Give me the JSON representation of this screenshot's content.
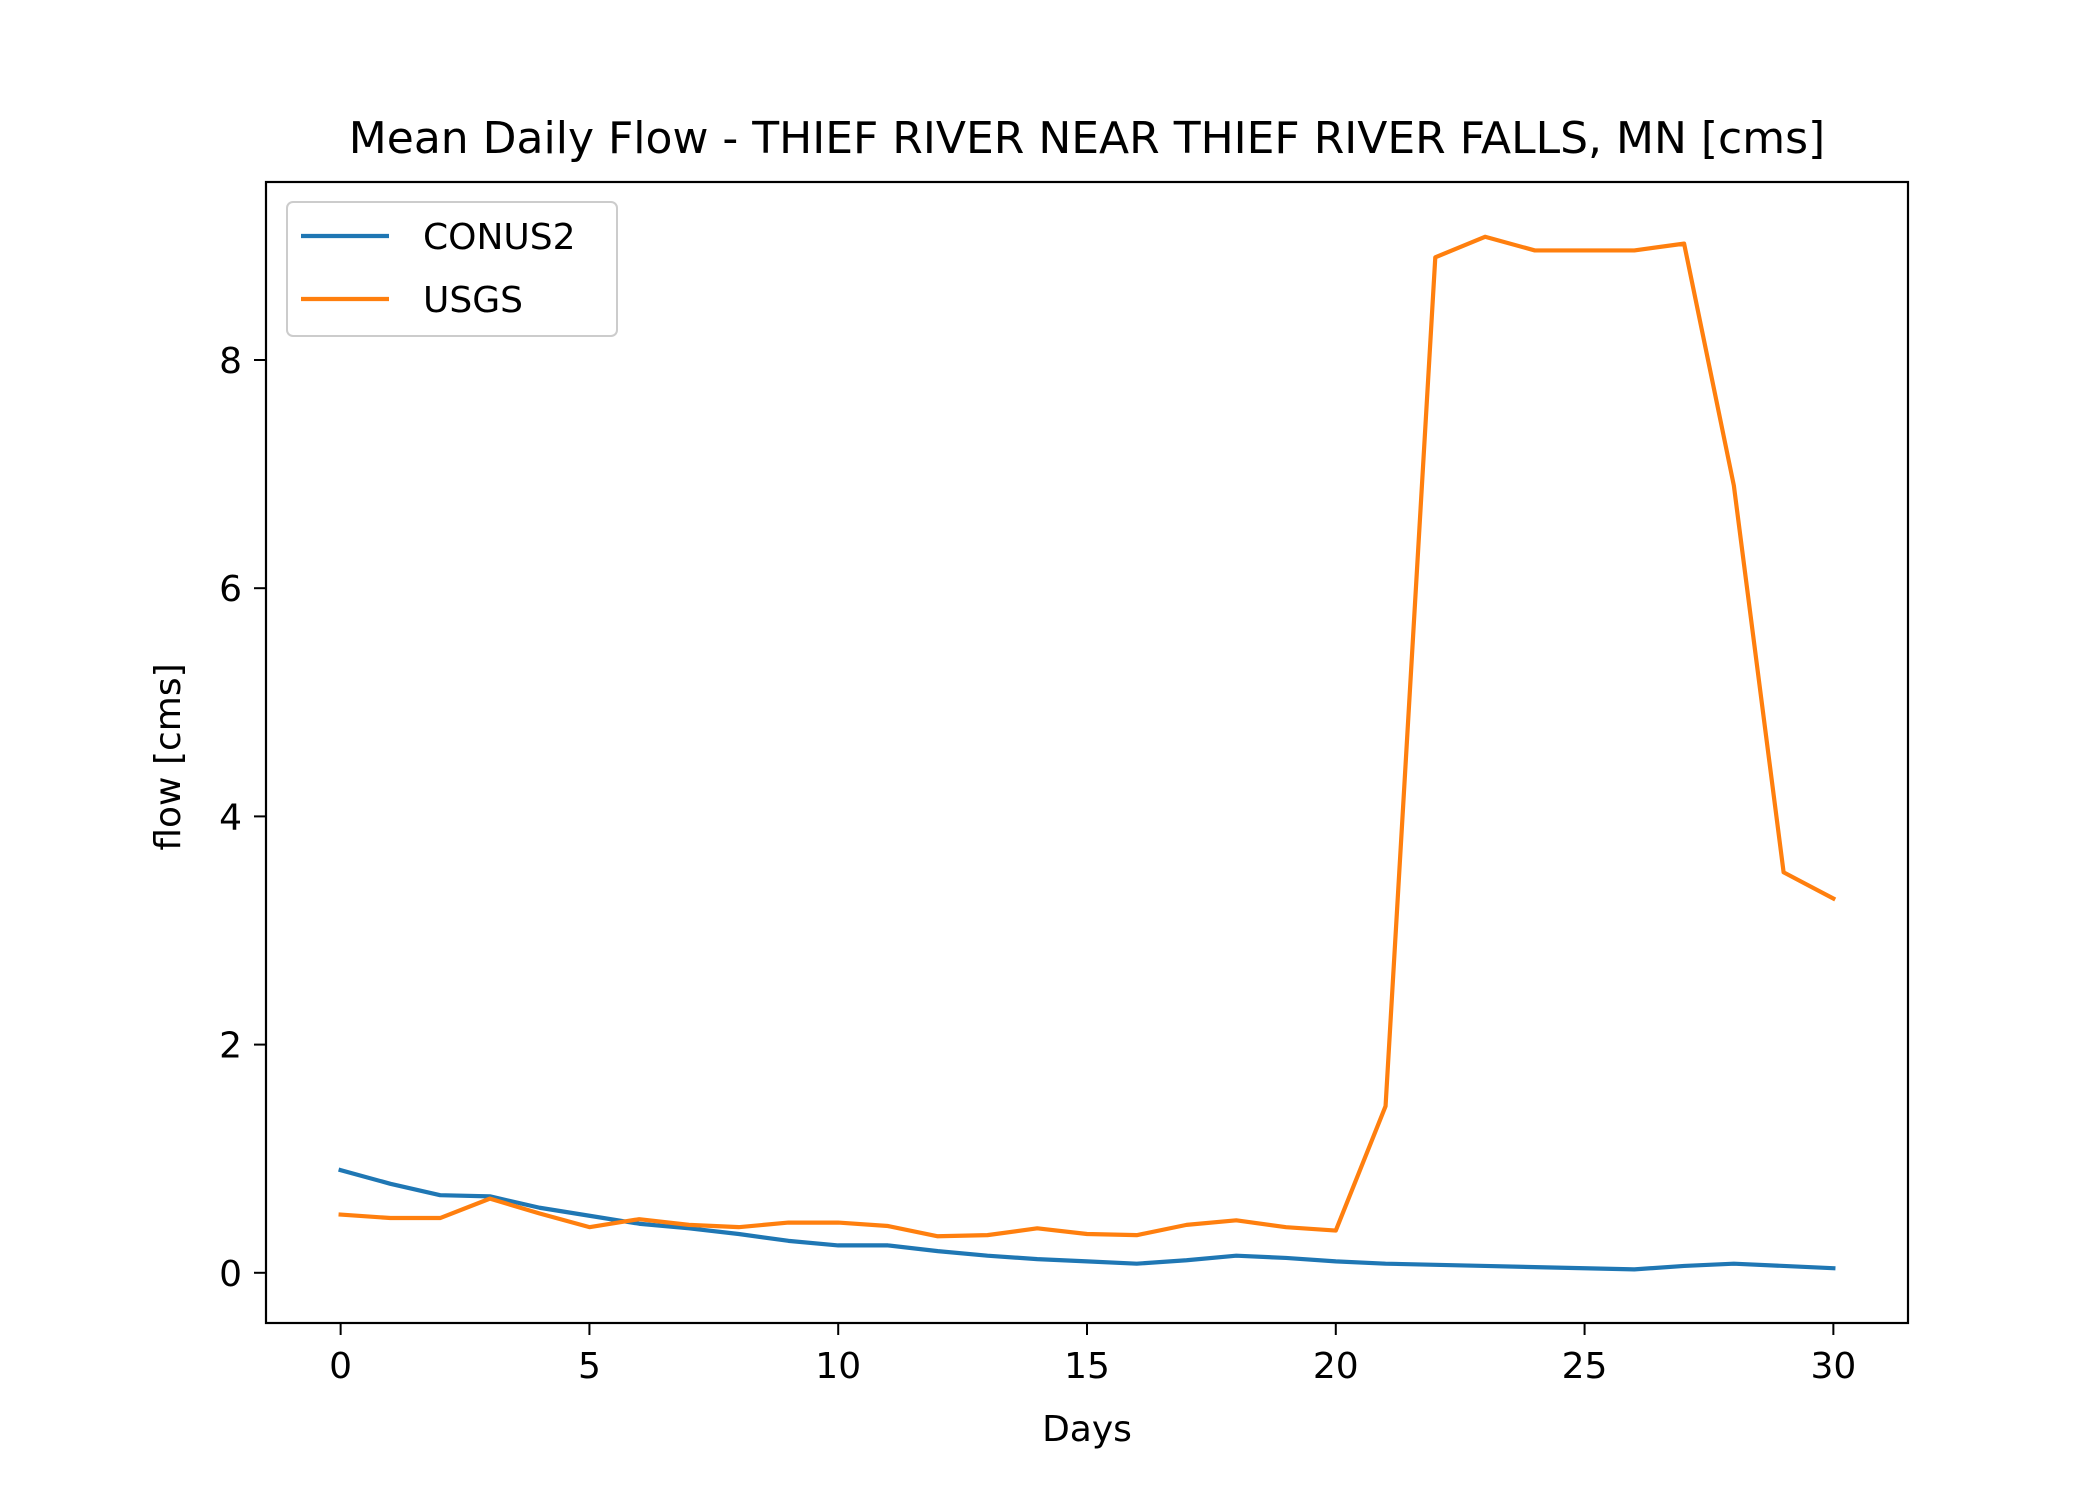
{
  "chart_data": {
    "type": "line",
    "title": "Mean Daily Flow - THIEF RIVER NEAR THIEF RIVER FALLS, MN [cms]",
    "xlabel": "Days",
    "ylabel": "flow [cms]",
    "xlim": [
      -1.5,
      31.5
    ],
    "ylim": [
      -0.44,
      9.56
    ],
    "xticks": [
      0,
      5,
      10,
      15,
      20,
      25,
      30
    ],
    "yticks": [
      0,
      2,
      4,
      6,
      8
    ],
    "grid": false,
    "legend_position": "upper-left",
    "x": [
      0,
      1,
      2,
      3,
      4,
      5,
      6,
      7,
      8,
      9,
      10,
      11,
      12,
      13,
      14,
      15,
      16,
      17,
      18,
      19,
      20,
      21,
      22,
      23,
      24,
      25,
      26,
      27,
      28,
      29,
      30
    ],
    "series": [
      {
        "name": "CONUS2",
        "color": "#1f77b4",
        "values": [
          0.9,
          0.78,
          0.68,
          0.67,
          0.57,
          0.5,
          0.43,
          0.39,
          0.34,
          0.28,
          0.24,
          0.24,
          0.19,
          0.15,
          0.12,
          0.1,
          0.08,
          0.11,
          0.15,
          0.13,
          0.1,
          0.08,
          0.07,
          0.06,
          0.05,
          0.04,
          0.03,
          0.06,
          0.08,
          0.06,
          0.04
        ]
      },
      {
        "name": "USGS",
        "color": "#ff7f0e",
        "values": [
          0.51,
          0.48,
          0.48,
          0.65,
          0.52,
          0.4,
          0.47,
          0.42,
          0.4,
          0.44,
          0.44,
          0.41,
          0.32,
          0.33,
          0.39,
          0.34,
          0.33,
          0.42,
          0.46,
          0.4,
          0.37,
          1.46,
          8.9,
          9.08,
          8.96,
          8.96,
          8.96,
          9.02,
          6.9,
          3.51,
          3.28
        ]
      }
    ]
  }
}
